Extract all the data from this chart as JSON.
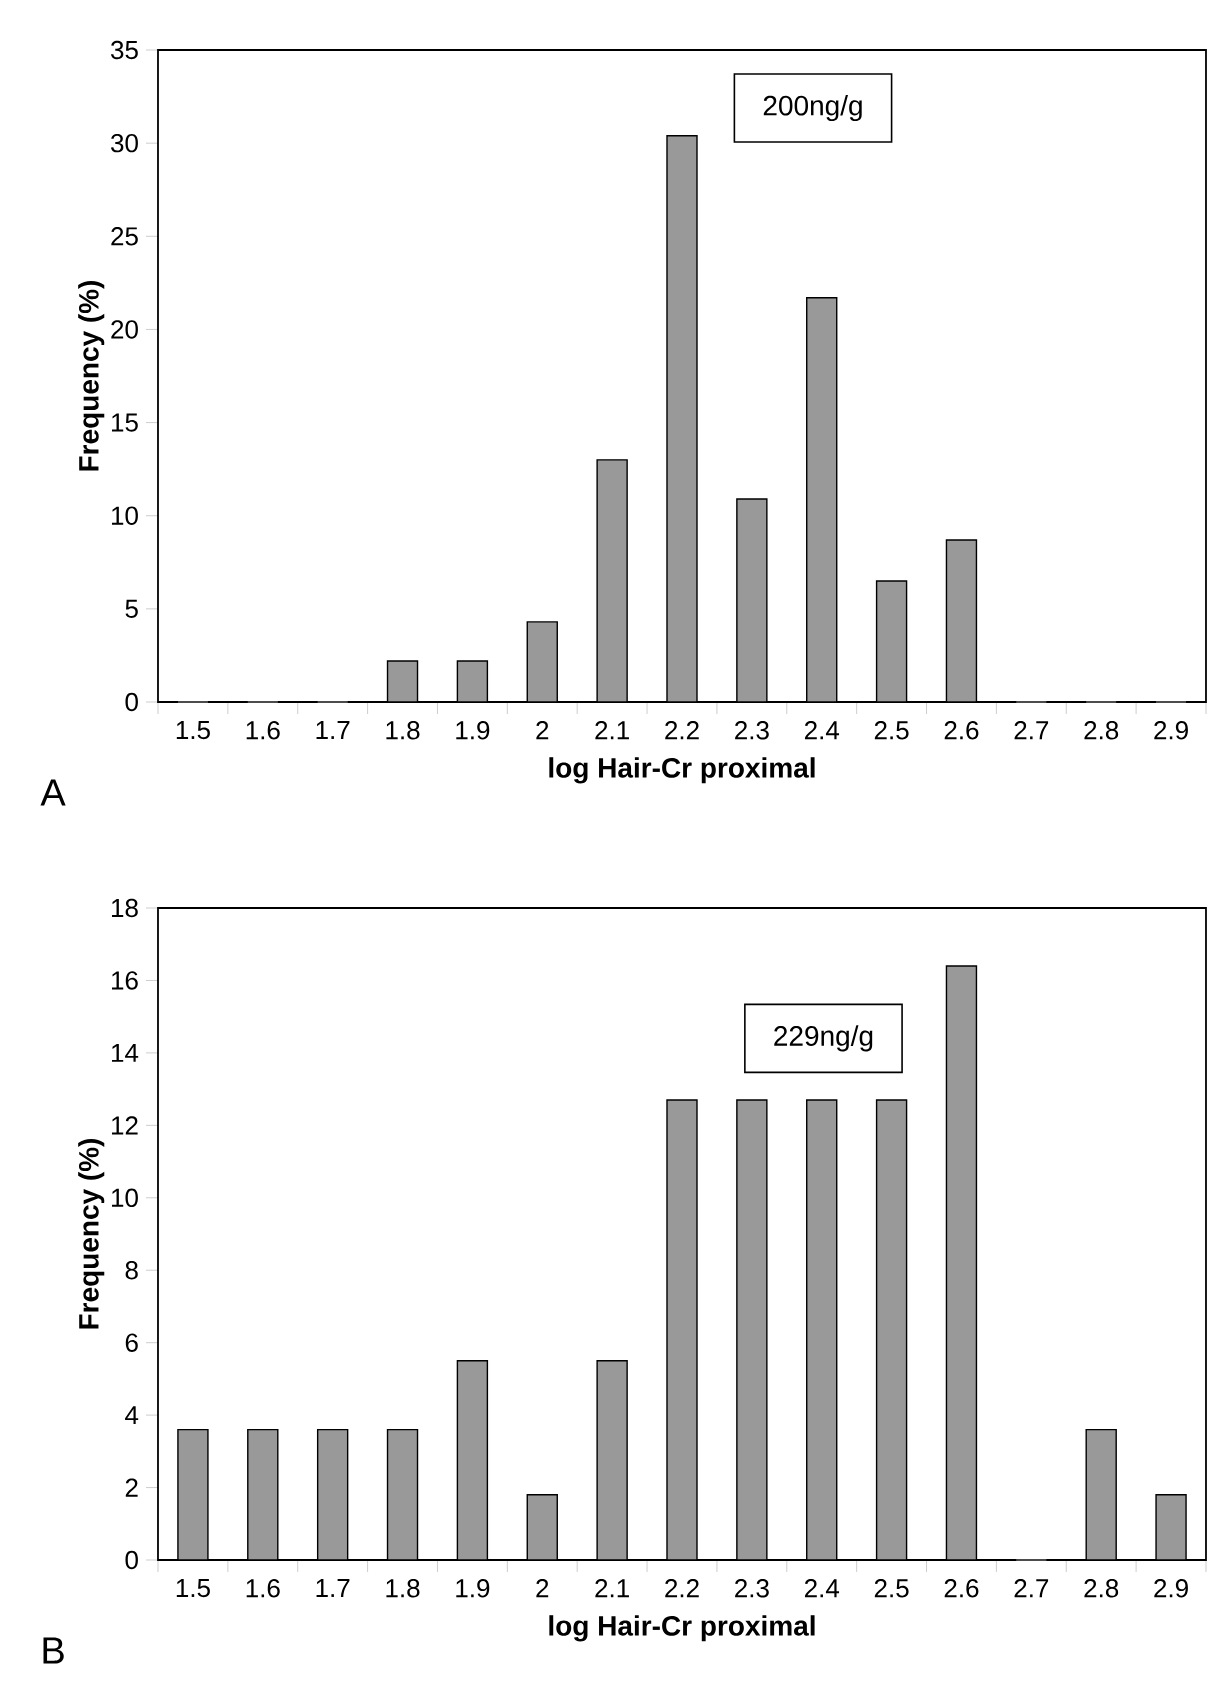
{
  "chart_data": [
    {
      "type": "bar",
      "xlabel": "log Hair-Cr proximal",
      "ylabel": "Frequency (%)",
      "categories": [
        "1.5",
        "1.6",
        "1.7",
        "1.8",
        "1.9",
        "2",
        "2.1",
        "2.2",
        "2.3",
        "2.4",
        "2.5",
        "2.6",
        "2.7",
        "2.8",
        "2.9"
      ],
      "values": [
        0,
        0,
        0,
        2.2,
        2.2,
        4.3,
        13.0,
        30.4,
        10.9,
        21.7,
        6.5,
        8.7,
        0,
        0,
        0
      ],
      "color": "#999999",
      "ylim": [
        0,
        35
      ],
      "yticks": [
        0,
        5,
        10,
        15,
        20,
        25,
        30,
        35
      ],
      "annotations": [
        "200ng/g",
        "A"
      ]
    },
    {
      "type": "bar",
      "xlabel": "log Hair-Cr proximal",
      "ylabel": "Frequency (%)",
      "categories": [
        "1.5",
        "1.6",
        "1.7",
        "1.8",
        "1.9",
        "2",
        "2.1",
        "2.2",
        "2.3",
        "2.4",
        "2.5",
        "2.6",
        "2.7",
        "2.8",
        "2.9"
      ],
      "values": [
        3.6,
        3.6,
        3.6,
        3.6,
        5.5,
        1.8,
        5.5,
        12.7,
        12.7,
        12.7,
        12.7,
        16.4,
        0,
        3.6,
        1.8
      ],
      "color": "#999999",
      "ylim": [
        0,
        18
      ],
      "yticks": [
        0,
        2,
        4,
        6,
        8,
        10,
        12,
        14,
        16,
        18
      ],
      "annotations": [
        "229ng/g",
        "B"
      ]
    }
  ]
}
